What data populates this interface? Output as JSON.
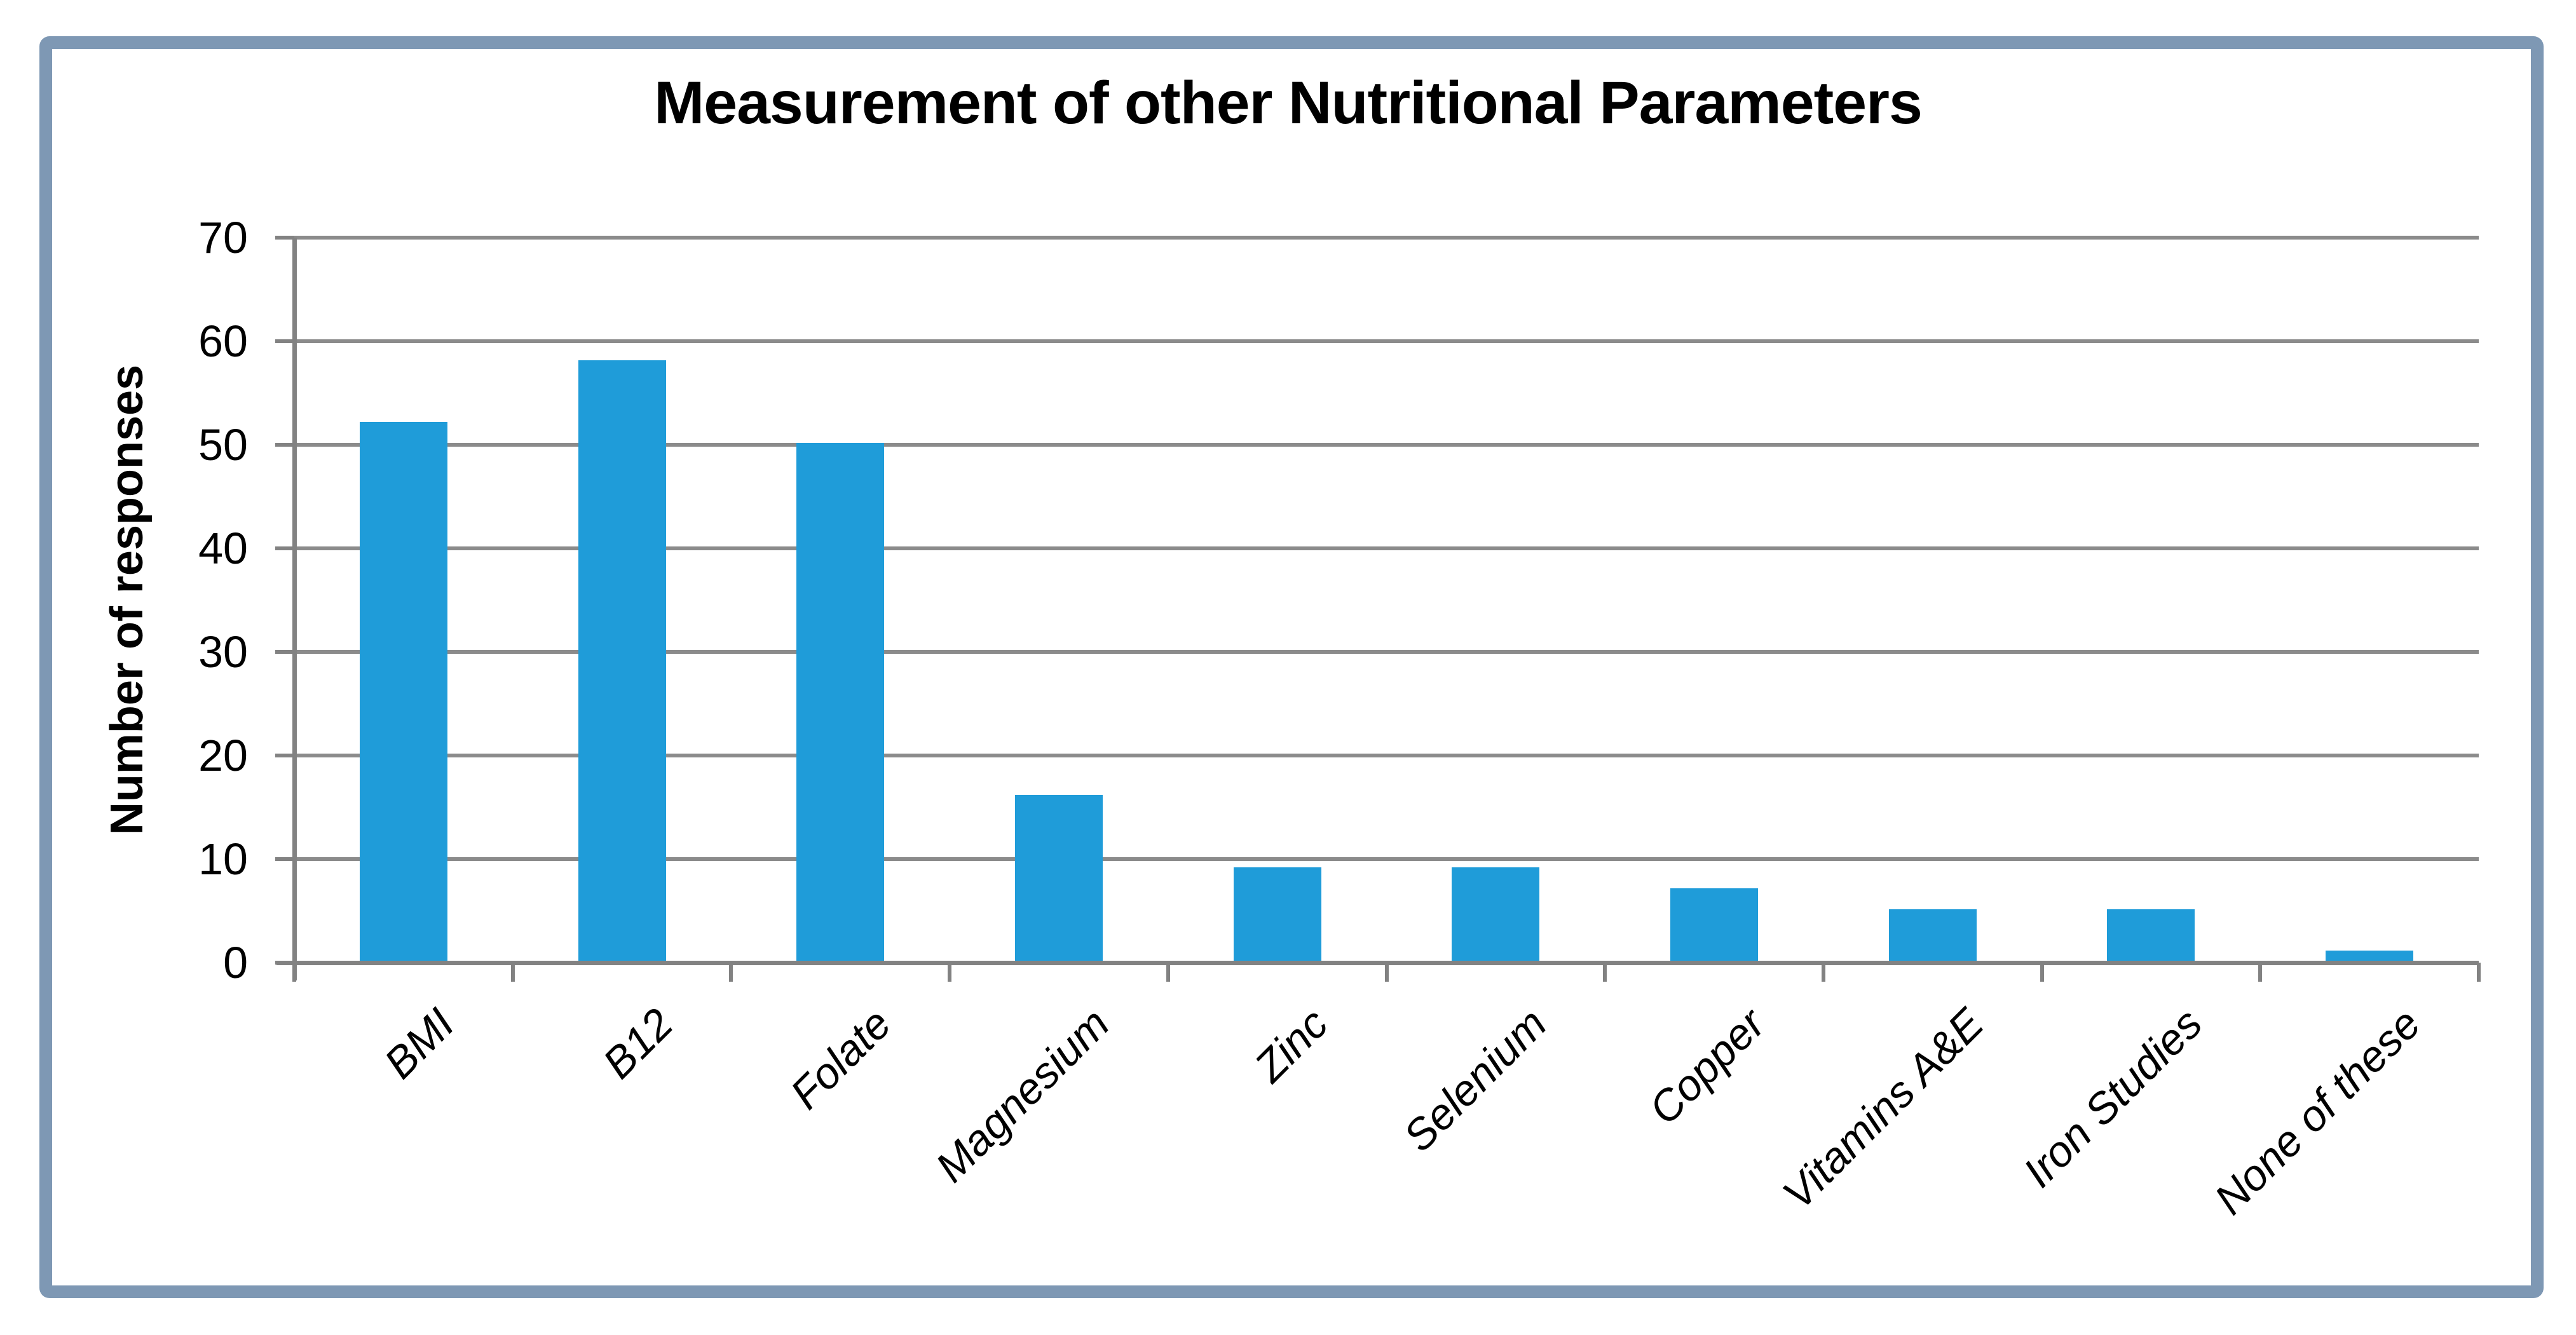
{
  "chart_data": {
    "type": "bar",
    "title": "Measurement of other Nutritional Parameters",
    "xlabel": "",
    "ylabel": "Number of responses",
    "categories": [
      "BMI",
      "B12",
      "Folate",
      "Magnesium",
      "Zinc",
      "Selenium",
      "Copper",
      "Vitamins A&E",
      "Iron Studies",
      "None of these"
    ],
    "values": [
      52,
      58,
      50,
      16,
      9,
      9,
      7,
      5,
      5,
      1
    ],
    "ylim": [
      0,
      70
    ],
    "yticks": [
      0,
      10,
      20,
      30,
      40,
      50,
      60,
      70
    ],
    "grid": true,
    "legend": false,
    "category_label_rotation_deg": 45,
    "colors": {
      "bar": "#1F9CD9",
      "gridline": "#8B8B8B",
      "axis": "#828282",
      "frame_border": "#7E98B4",
      "text": "#000000",
      "background": "#FFFFFF"
    }
  }
}
